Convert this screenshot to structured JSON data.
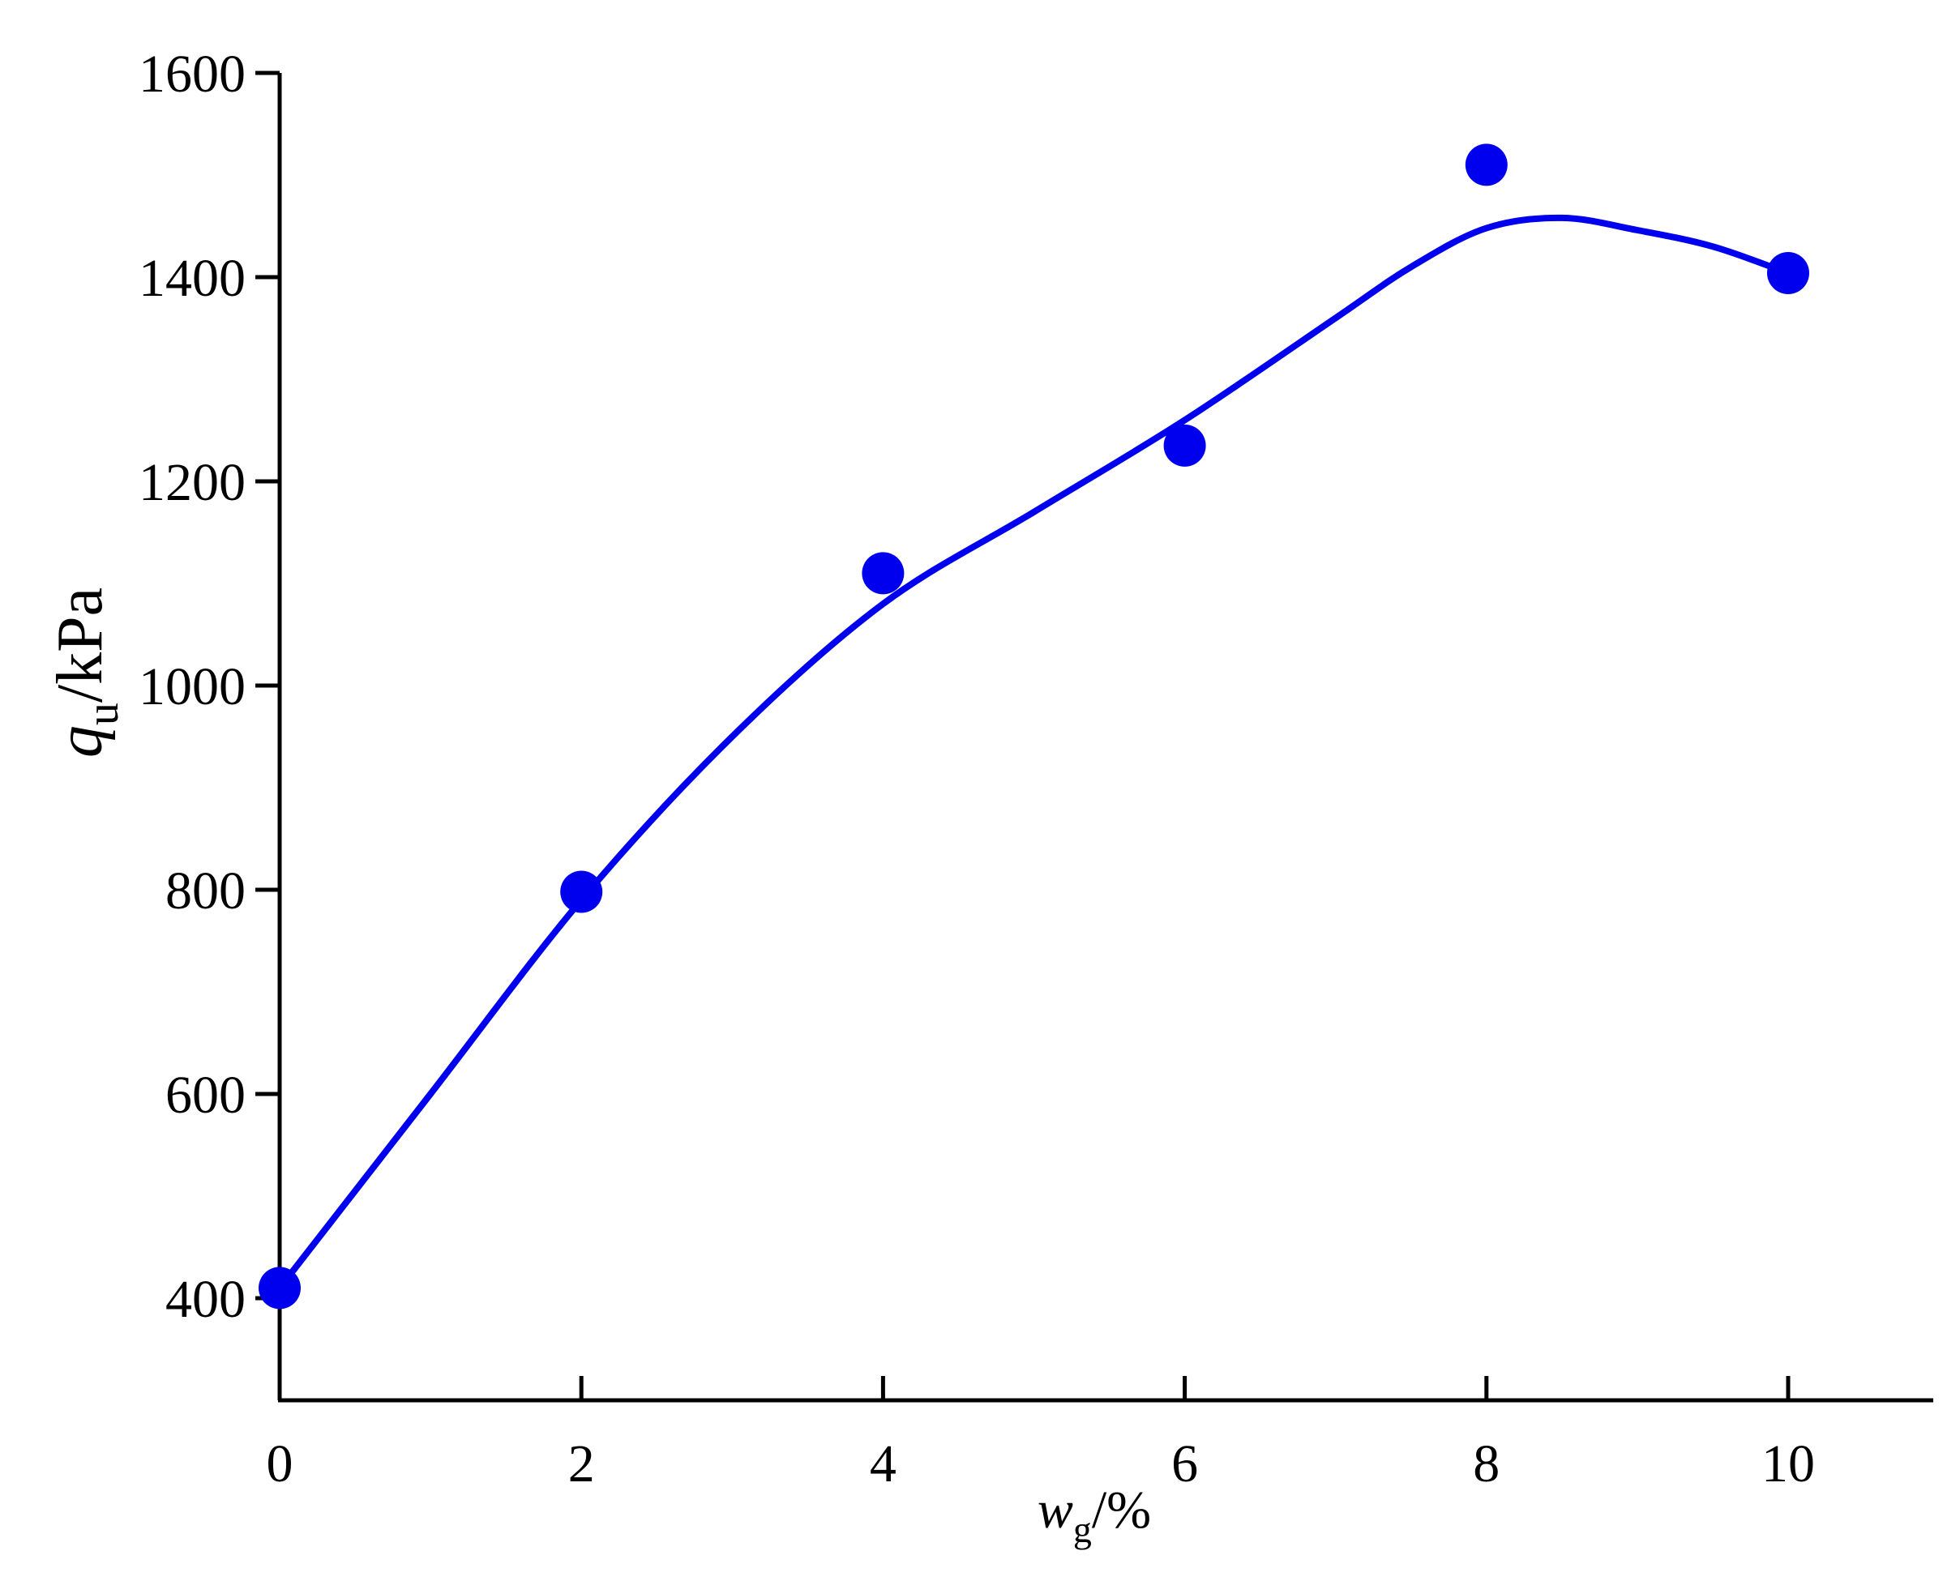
{
  "chart_data": {
    "type": "scatter",
    "title": "",
    "xlabel": {
      "symbol": "w",
      "subscript": "g",
      "unit": "/%"
    },
    "ylabel": {
      "symbol": "q",
      "subscript": "u",
      "unit": "/kPa"
    },
    "xlim": [
      -1,
      10.5
    ],
    "ylim": [
      300,
      1600
    ],
    "x_ticks": [
      0,
      2,
      4,
      6,
      8,
      10
    ],
    "y_ticks": [
      400,
      600,
      800,
      1000,
      1200,
      1400,
      1600
    ],
    "x_tick_labels": [
      "0",
      "2",
      "4",
      "6",
      "8",
      "10"
    ],
    "y_tick_labels": [
      "400",
      "600",
      "800",
      "1000",
      "1200",
      "1400",
      "1600"
    ],
    "grid": false,
    "legend": "none",
    "series": [
      {
        "kind": "points",
        "x": [
          0,
          2,
          4,
          6,
          8,
          10
        ],
        "y": [
          410,
          798,
          1110,
          1235,
          1510,
          1404
        ]
      },
      {
        "kind": "fitted-curve",
        "x": [
          0,
          1,
          2,
          3,
          4,
          5,
          6,
          7,
          7.5,
          8,
          8.5,
          9,
          9.5,
          10
        ],
        "y": [
          410,
          600,
          790,
          950,
          1080,
          1170,
          1260,
          1360,
          1410,
          1448,
          1458,
          1446,
          1430,
          1404
        ]
      }
    ],
    "colors": {
      "series": "#0000ee",
      "axis": "#000000"
    }
  }
}
